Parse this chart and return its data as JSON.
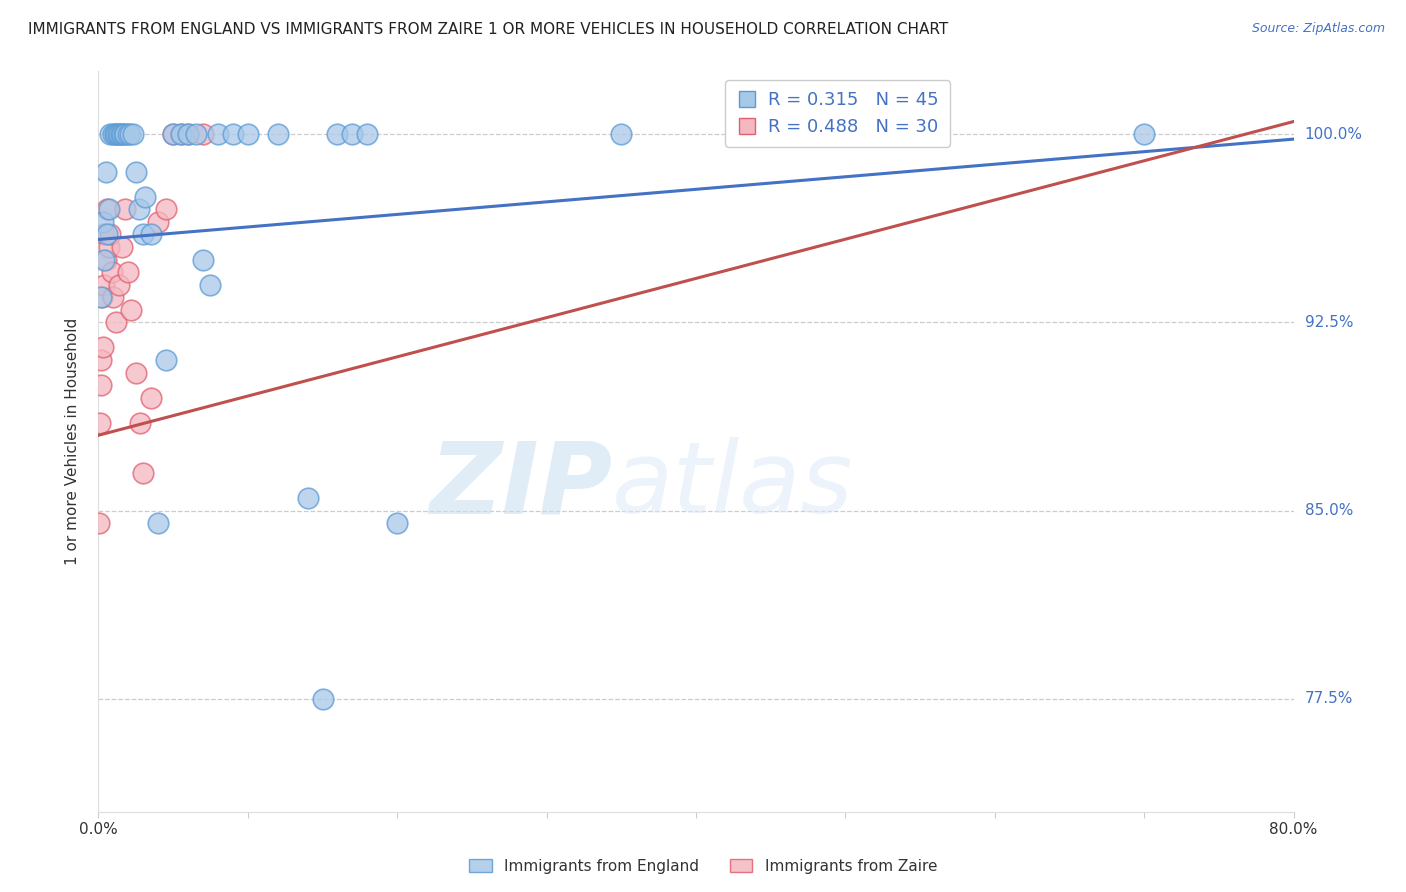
{
  "title": "IMMIGRANTS FROM ENGLAND VS IMMIGRANTS FROM ZAIRE 1 OR MORE VEHICLES IN HOUSEHOLD CORRELATION CHART",
  "source": "Source: ZipAtlas.com",
  "ylabel": "1 or more Vehicles in Household",
  "yticks": [
    100.0,
    92.5,
    85.0,
    77.5
  ],
  "ytick_labels": [
    "100.0%",
    "92.5%",
    "85.0%",
    "77.5%"
  ],
  "xmin": 0.0,
  "xmax": 80.0,
  "ymin": 73.0,
  "ymax": 102.5,
  "england_color": "#a8c8e8",
  "england_color_edge": "#5b9bd5",
  "zaire_color": "#f4b8c1",
  "zaire_color_edge": "#e06070",
  "england_alpha": 0.75,
  "zaire_alpha": 0.75,
  "england_R": 0.315,
  "england_N": 45,
  "zaire_R": 0.488,
  "zaire_N": 30,
  "england_label": "Immigrants from England",
  "zaire_label": "Immigrants from Zaire",
  "watermark_zip": "ZIP",
  "watermark_atlas": "atlas",
  "blue_line_color": "#4472c4",
  "pink_line_color": "#c0504d",
  "england_x": [
    0.2,
    0.3,
    0.4,
    0.5,
    0.6,
    0.7,
    0.8,
    1.0,
    1.1,
    1.2,
    1.3,
    1.4,
    1.5,
    1.6,
    1.7,
    1.8,
    2.0,
    2.1,
    2.3,
    2.5,
    2.7,
    3.0,
    3.1,
    3.5,
    4.0,
    4.5,
    5.0,
    5.5,
    6.0,
    6.5,
    7.0,
    7.5,
    8.0,
    9.0,
    10.0,
    12.0,
    14.0,
    15.0,
    16.0,
    17.0,
    18.0,
    20.0,
    35.0,
    55.0,
    70.0
  ],
  "england_y": [
    93.5,
    96.5,
    95.0,
    98.5,
    96.0,
    97.0,
    100.0,
    100.0,
    100.0,
    100.0,
    100.0,
    100.0,
    100.0,
    100.0,
    100.0,
    100.0,
    100.0,
    100.0,
    100.0,
    98.5,
    97.0,
    96.0,
    97.5,
    96.0,
    84.5,
    91.0,
    100.0,
    100.0,
    100.0,
    100.0,
    95.0,
    94.0,
    100.0,
    100.0,
    100.0,
    100.0,
    85.5,
    77.5,
    100.0,
    100.0,
    100.0,
    84.5,
    100.0,
    100.0,
    100.0
  ],
  "zaire_x": [
    0.05,
    0.1,
    0.15,
    0.2,
    0.25,
    0.3,
    0.35,
    0.4,
    0.5,
    0.6,
    0.7,
    0.8,
    0.9,
    1.0,
    1.2,
    1.4,
    1.6,
    1.8,
    2.0,
    2.2,
    2.5,
    2.8,
    3.0,
    3.5,
    4.0,
    4.5,
    5.0,
    5.5,
    6.0,
    7.0
  ],
  "zaire_y": [
    84.5,
    88.5,
    91.0,
    90.0,
    93.5,
    91.5,
    94.0,
    96.0,
    95.0,
    97.0,
    95.5,
    96.0,
    94.5,
    93.5,
    92.5,
    94.0,
    95.5,
    97.0,
    94.5,
    93.0,
    90.5,
    88.5,
    86.5,
    89.5,
    96.5,
    97.0,
    100.0,
    100.0,
    100.0,
    100.0
  ],
  "eng_line_x0": 0.0,
  "eng_line_x1": 80.0,
  "eng_line_y0": 95.8,
  "eng_line_y1": 99.8,
  "zai_line_x0": 0.0,
  "zai_line_x1": 80.0,
  "zai_line_y0": 88.0,
  "zai_line_y1": 100.5
}
